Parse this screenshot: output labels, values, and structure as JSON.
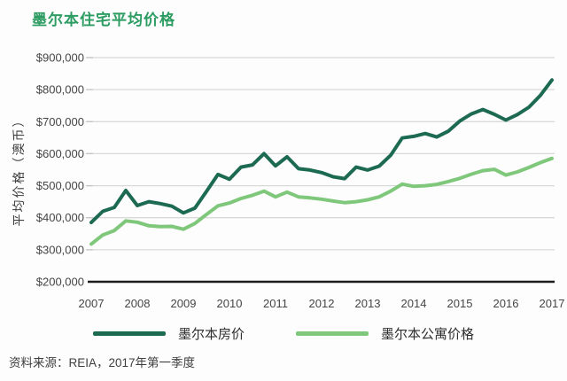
{
  "title": "墨尔本住宅平均价格",
  "source_note": "资料来源：REIA，2017年第一季度",
  "colors": {
    "title_green": "#2d9c62",
    "house_line": "#1d6a52",
    "apartment_line": "#7fc87b",
    "grid": "#d9d9d9",
    "axis": "#1c1c1c",
    "tick_text": "#454545"
  },
  "chart_data": {
    "type": "line",
    "title": "墨尔本住宅平均价格",
    "xlabel": "",
    "ylabel": "平均价格（澳币）",
    "ylim": [
      200000,
      900000
    ],
    "grid": true,
    "legend_position": "bottom",
    "x_unit": "quarterly from 2007 Q1 to 2017 Q1",
    "x_tick_labels": [
      "2007",
      "2008",
      "2009",
      "2010",
      "2011",
      "2012",
      "2013",
      "2014",
      "2015",
      "2016",
      "2017"
    ],
    "y_ticks": [
      {
        "label": "$200,000",
        "value": 200000
      },
      {
        "label": "$300,000",
        "value": 300000
      },
      {
        "label": "$400,000",
        "value": 400000
      },
      {
        "label": "$500,000",
        "value": 500000
      },
      {
        "label": "$600,000",
        "value": 600000
      },
      {
        "label": "$700,000",
        "value": 700000
      },
      {
        "label": "$800,000",
        "value": 800000
      },
      {
        "label": "$900,000",
        "value": 900000
      }
    ],
    "colors": {
      "grid": "#d9d9d9",
      "axis": "#1c1c1c"
    },
    "series": [
      {
        "name": "墨尔本房价",
        "color": "#1d6a52",
        "values": [
          385000,
          420000,
          432000,
          485000,
          438000,
          450000,
          444000,
          436000,
          415000,
          430000,
          482000,
          535000,
          520000,
          558000,
          565000,
          600000,
          562000,
          590000,
          553000,
          549000,
          541000,
          528000,
          522000,
          558000,
          549000,
          561000,
          595000,
          649000,
          654000,
          663000,
          652000,
          670000,
          702000,
          724000,
          738000,
          723000,
          705000,
          722000,
          745000,
          782000,
          830000
        ]
      },
      {
        "name": "墨尔本公寓价格",
        "color": "#7fc87b",
        "values": [
          318000,
          346000,
          360000,
          390000,
          386000,
          375000,
          372000,
          373000,
          364000,
          382000,
          410000,
          437000,
          446000,
          460000,
          470000,
          483000,
          465000,
          480000,
          465000,
          462000,
          458000,
          452000,
          447000,
          450000,
          456000,
          465000,
          483000,
          505000,
          498000,
          500000,
          504000,
          513000,
          523000,
          536000,
          547000,
          551000,
          533000,
          543000,
          557000,
          572000,
          585000
        ]
      }
    ]
  }
}
